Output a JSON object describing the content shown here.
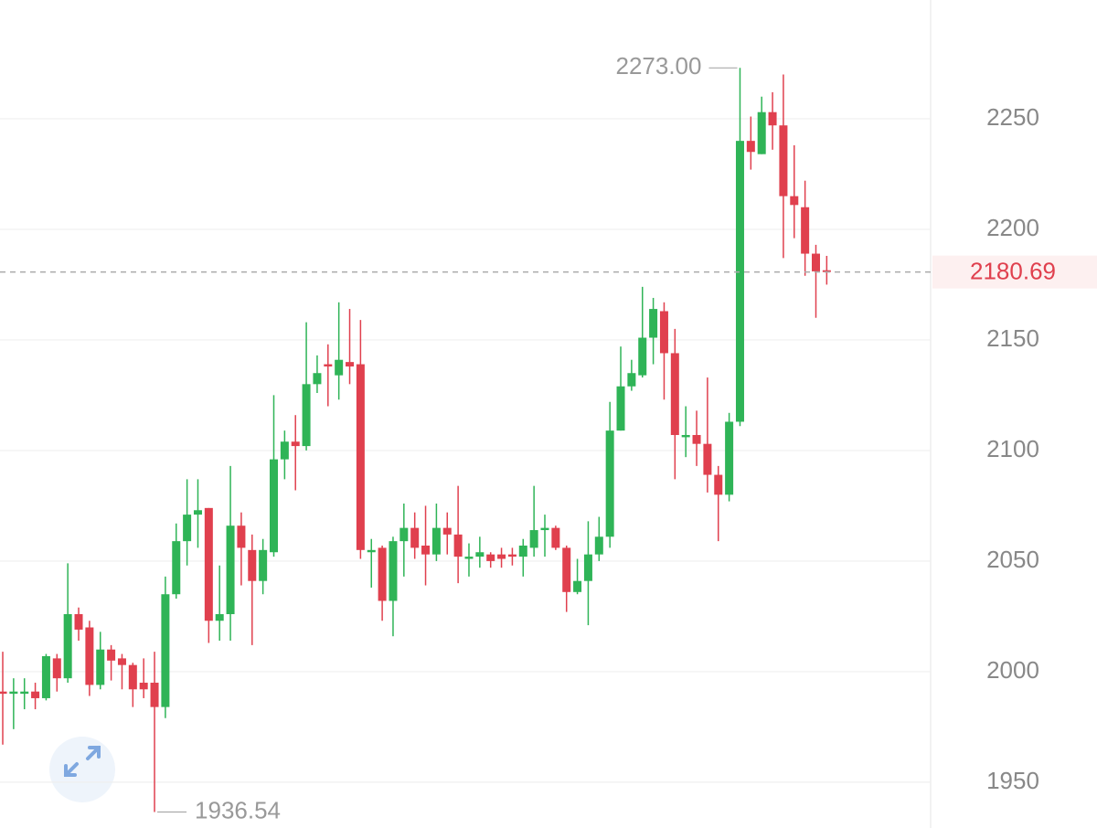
{
  "chart_data": {
    "type": "candlestick",
    "up_color": "#2fb457",
    "down_color": "#e0404e",
    "ylim": [
      1929.3,
      2303.7
    ],
    "yticks": [
      1950,
      2000,
      2050,
      2100,
      2150,
      2200,
      2250
    ],
    "grid": true,
    "open": [
      1991,
      1990,
      1990,
      1991,
      1988,
      2006,
      1997,
      2026,
      2020,
      1994,
      2010,
      2006,
      2003,
      1995,
      1995,
      1984,
      2035,
      2059,
      2071,
      2074,
      2023,
      2026,
      2066,
      2055,
      2041,
      2054,
      2096,
      2104,
      2102,
      2130,
      2139,
      2134,
      2140,
      2139,
      2054,
      2056,
      2032,
      2059,
      2065,
      2057,
      2053,
      2065,
      2062,
      2051,
      2052,
      2053,
      2053,
      2053,
      2052,
      2056,
      2064,
      2065,
      2056,
      2036,
      2041,
      2053,
      2061,
      2109,
      2129,
      2134,
      2151,
      2163,
      2144,
      2106,
      2107,
      2103,
      2089,
      2080,
      2113,
      2240,
      2234,
      2253,
      2247,
      2215,
      2210,
      2189,
      2181.5
    ],
    "high": [
      2009,
      1997,
      1997,
      1995,
      2008,
      2008,
      2049,
      2029,
      2023,
      2018,
      2012,
      2008,
      2004,
      2006,
      2009,
      2043,
      2067,
      2087,
      2087,
      2074,
      2048,
      2093,
      2072,
      2062,
      2060,
      2125,
      2109,
      2116,
      2158,
      2143,
      2148,
      2167,
      2164,
      2159,
      2060,
      2057,
      2061,
      2076,
      2072,
      2075,
      2076,
      2072,
      2084,
      2058,
      2061,
      2054,
      2056,
      2056,
      2060,
      2084,
      2071,
      2066,
      2057,
      2051,
      2068,
      2070,
      2122,
      2147,
      2141,
      2174,
      2169,
      2167,
      2155,
      2120,
      2118,
      2133,
      2093,
      2117,
      2273,
      2251,
      2260,
      2262,
      2270,
      2238,
      2222,
      2193,
      2188
    ],
    "low": [
      1967,
      1974,
      1983,
      1983,
      1987,
      1991,
      1995,
      2014,
      1989,
      1992,
      1996,
      1992,
      1984,
      1988,
      1936.54,
      1979,
      2033,
      2048,
      2056,
      2013,
      2014,
      2014,
      2039,
      2012,
      2035,
      2052,
      2087,
      2082,
      2100,
      2126,
      2120,
      2123,
      2130,
      2051,
      2038,
      2023,
      2016,
      2043,
      2051,
      2039,
      2050,
      2053,
      2040,
      2043,
      2047,
      2047,
      2047,
      2048,
      2043,
      2052,
      2052,
      2055,
      2027,
      2035,
      2021,
      2050,
      2056,
      2109,
      2127,
      2133,
      2139,
      2123,
      2087,
      2097,
      2093,
      2081,
      2059,
      2077,
      2111,
      2227,
      2234,
      2236,
      2187,
      2196,
      2179,
      2160,
      2175
    ],
    "close": [
      1990,
      1991,
      1991,
      1988,
      2007,
      1997,
      2026,
      2019,
      1994,
      2010,
      2005,
      2003,
      1992,
      1992,
      1984,
      2035,
      2059,
      2071,
      2073,
      2023,
      2026,
      2066,
      2056,
      2041,
      2055,
      2096,
      2104,
      2102,
      2130,
      2135,
      2138,
      2141,
      2138,
      2055,
      2055,
      2032,
      2059,
      2065,
      2056,
      2053,
      2065,
      2062,
      2052,
      2052,
      2054,
      2050,
      2051,
      2052,
      2057,
      2064,
      2065,
      2056,
      2036,
      2041,
      2053,
      2061,
      2109,
      2129,
      2135,
      2151,
      2164,
      2144,
      2107,
      2107,
      2103,
      2089,
      2080,
      2113,
      2240,
      2235,
      2253,
      2247,
      2215,
      2211,
      2189,
      2181,
      2180.69
    ],
    "high_marker": {
      "value": 2273,
      "label": "2273.00"
    },
    "low_marker": {
      "value": 1936.54,
      "label": "1936.54"
    },
    "last_price": 2180.69
  }
}
